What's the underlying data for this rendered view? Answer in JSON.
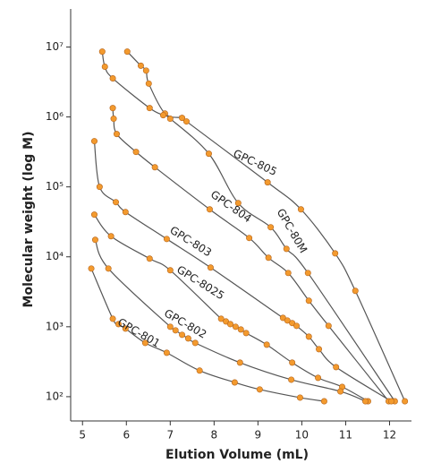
{
  "chart_data": {
    "type": "line",
    "x_label": "Elution Volume (mL)",
    "y_label": "Molecular weight (log M)",
    "log_y": true,
    "line_color": "#555555",
    "marker_color": "#f39a2e",
    "xlim": [
      4.73,
      12.5
    ],
    "xticks": [
      5,
      6,
      7,
      8,
      9,
      10,
      11,
      12
    ],
    "ylim": [
      45,
      35000000
    ],
    "yticks": [
      {
        "value": 100,
        "label": "10²"
      },
      {
        "value": 1000,
        "label": "10³"
      },
      {
        "value": 10000,
        "label": "10⁴"
      },
      {
        "value": 100000,
        "label": "10⁵"
      },
      {
        "value": 1000000,
        "label": "10⁶"
      },
      {
        "value": 10000000,
        "label": "10⁷"
      }
    ],
    "series": [
      {
        "name": "GPC-805",
        "x": [
          6.02,
          6.33,
          6.45,
          6.51,
          6.88,
          7.27,
          7.37,
          9.22,
          9.98,
          10.76,
          11.22,
          12.35
        ],
        "values": [
          8600000,
          5400000,
          4600000,
          3000000,
          1120000,
          970000,
          863000,
          116000,
          47700,
          11200,
          3260,
          86
        ]
      },
      {
        "name": "GPC-80M",
        "x": [
          5.45,
          5.51,
          5.69,
          6.53,
          6.84,
          7.0,
          7.88,
          8.55,
          9.29,
          9.65,
          10.14,
          12.12
        ],
        "values": [
          8600000,
          5230000,
          3560000,
          1340000,
          1060000,
          943000,
          298000,
          58700,
          26500,
          13000,
          5870,
          86
        ]
      },
      {
        "name": "GPC-804",
        "x": [
          5.69,
          5.71,
          5.78,
          6.22,
          6.65,
          7.9,
          8.8,
          9.24,
          9.69,
          10.16,
          10.61,
          11.98
        ],
        "values": [
          1340000,
          943000,
          570000,
          316000,
          191000,
          47700,
          18600,
          9700,
          5870,
          2360,
          1030,
          86
        ]
      },
      {
        "name": "GPC-803",
        "x": [
          5.27,
          5.39,
          5.76,
          5.98,
          6.92,
          7.92,
          9.57,
          9.67,
          9.78,
          9.88,
          10.16,
          10.39,
          10.78,
          12.04
        ],
        "values": [
          451000,
          100000,
          60500,
          43700,
          18000,
          7020,
          1340,
          1230,
          1130,
          1030,
          722,
          478,
          265,
          86
        ]
      },
      {
        "name": "GPC-8025",
        "x": [
          5.27,
          5.65,
          6.53,
          7.0,
          8.16,
          8.27,
          8.37,
          8.49,
          8.61,
          8.73,
          9.2,
          9.78,
          10.37,
          10.92,
          11.51
        ],
        "values": [
          40100,
          19700,
          9420,
          6420,
          1300,
          1190,
          1090,
          1000,
          915,
          813,
          554,
          307,
          186,
          138,
          86
        ]
      },
      {
        "name": "GPC-802",
        "x": [
          5.29,
          5.59,
          7.0,
          7.12,
          7.27,
          7.41,
          7.57,
          8.59,
          9.76,
          10.88,
          11.45
        ],
        "values": [
          17500,
          6800,
          1000,
          889,
          767,
          681,
          587,
          307,
          175,
          119,
          86
        ]
      },
      {
        "name": "GPC-801",
        "x": [
          5.2,
          5.69,
          5.82,
          5.98,
          6.43,
          6.92,
          7.67,
          8.47,
          9.04,
          9.96,
          10.51
        ],
        "values": [
          6800,
          1300,
          1090,
          942,
          587,
          425,
          236,
          160,
          127,
          97,
          86
        ]
      }
    ]
  }
}
